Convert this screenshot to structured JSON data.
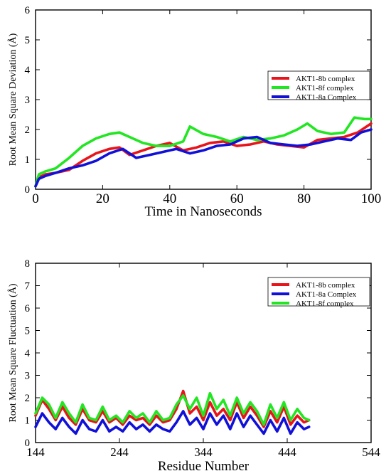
{
  "colors": {
    "red": "#e8141c",
    "green": "#22e622",
    "blue": "#1010d8"
  },
  "chart_data": [
    {
      "type": "line",
      "xlabel": "Time in Nanoseconds",
      "ylabel": "Root Mean Square Deviation (Å)",
      "xlim": [
        0,
        100
      ],
      "ylim": [
        0,
        6
      ],
      "xticks": [
        0,
        20,
        40,
        60,
        80,
        100
      ],
      "yticks": [
        0,
        1,
        2,
        3,
        4,
        5,
        6
      ],
      "legend_position": "upper-right",
      "legend_order": [
        "AKT1-8b complex",
        "AKT1-8f complex",
        "AKT1-8a Complex"
      ],
      "series": [
        {
          "name": "AKT1-8b complex",
          "color": "red",
          "x": [
            0,
            1,
            3,
            6,
            10,
            14,
            18,
            22,
            25,
            28,
            32,
            36,
            40,
            44,
            48,
            52,
            56,
            60,
            64,
            68,
            72,
            76,
            80,
            84,
            88,
            92,
            96,
            100
          ],
          "y": [
            0.1,
            0.4,
            0.5,
            0.55,
            0.65,
            0.95,
            1.2,
            1.35,
            1.4,
            1.15,
            1.3,
            1.45,
            1.55,
            1.3,
            1.4,
            1.55,
            1.6,
            1.45,
            1.5,
            1.6,
            1.5,
            1.45,
            1.4,
            1.65,
            1.7,
            1.75,
            1.9,
            2.2
          ]
        },
        {
          "name": "AKT1-8f complex",
          "color": "green",
          "x": [
            0,
            1,
            3,
            6,
            10,
            14,
            18,
            22,
            25,
            28,
            32,
            36,
            40,
            44,
            46,
            50,
            54,
            58,
            62,
            66,
            70,
            74,
            78,
            81,
            84,
            88,
            92,
            95,
            98,
            100
          ],
          "y": [
            0.1,
            0.5,
            0.6,
            0.7,
            1.05,
            1.45,
            1.7,
            1.85,
            1.9,
            1.75,
            1.55,
            1.45,
            1.45,
            1.6,
            2.1,
            1.85,
            1.75,
            1.6,
            1.75,
            1.65,
            1.7,
            1.8,
            2.0,
            2.2,
            1.95,
            1.85,
            1.9,
            2.4,
            2.35,
            2.35
          ]
        },
        {
          "name": "AKT1-8a Complex",
          "color": "blue",
          "x": [
            0,
            1,
            3,
            6,
            10,
            14,
            18,
            22,
            26,
            30,
            34,
            38,
            42,
            46,
            50,
            54,
            58,
            62,
            66,
            70,
            74,
            78,
            82,
            86,
            90,
            94,
            97,
            100
          ],
          "y": [
            0.1,
            0.35,
            0.45,
            0.55,
            0.7,
            0.8,
            0.95,
            1.2,
            1.35,
            1.05,
            1.15,
            1.25,
            1.35,
            1.2,
            1.3,
            1.45,
            1.5,
            1.7,
            1.75,
            1.55,
            1.5,
            1.45,
            1.5,
            1.6,
            1.7,
            1.65,
            1.9,
            2.0
          ]
        }
      ]
    },
    {
      "type": "line",
      "xlabel": "Residue Number",
      "ylabel": "Root Mean Square Fluctuation (Å)",
      "xlim": [
        144,
        544
      ],
      "ylim": [
        0,
        8
      ],
      "xticks": [
        144,
        244,
        344,
        444,
        544
      ],
      "yticks": [
        0,
        1,
        2,
        3,
        4,
        5,
        6,
        7,
        8
      ],
      "legend_position": "upper-right",
      "legend_order": [
        "AKT1-8b complex",
        "AKT1-8a Complex",
        "AKT1-8f complex"
      ],
      "series": [
        {
          "name": "AKT1-8b complex",
          "color": "red",
          "x": [
            144,
            152,
            160,
            168,
            176,
            184,
            192,
            200,
            208,
            216,
            224,
            232,
            240,
            248,
            256,
            264,
            272,
            280,
            288,
            296,
            304,
            312,
            320,
            328,
            336,
            344,
            352,
            360,
            368,
            376,
            384,
            392,
            400,
            408,
            416,
            424,
            432,
            440,
            448,
            456,
            464,
            470
          ],
          "y": [
            1.2,
            1.9,
            1.5,
            1.0,
            1.6,
            1.1,
            0.8,
            1.5,
            1.0,
            0.9,
            1.4,
            0.9,
            1.1,
            0.8,
            1.2,
            1.0,
            1.1,
            0.8,
            1.2,
            0.9,
            1.0,
            1.5,
            2.3,
            1.3,
            1.6,
            1.0,
            1.8,
            1.2,
            1.5,
            1.0,
            1.8,
            1.1,
            1.6,
            1.2,
            0.7,
            1.4,
            0.9,
            1.6,
            0.8,
            1.2,
            0.9,
            1.0
          ]
        },
        {
          "name": "AKT1-8a Complex",
          "color": "blue",
          "x": [
            144,
            152,
            160,
            168,
            176,
            184,
            192,
            200,
            208,
            216,
            224,
            232,
            240,
            248,
            256,
            264,
            272,
            280,
            288,
            296,
            304,
            312,
            320,
            328,
            336,
            344,
            352,
            360,
            368,
            376,
            384,
            392,
            400,
            408,
            416,
            424,
            432,
            440,
            448,
            456,
            464,
            470
          ],
          "y": [
            0.7,
            1.3,
            0.9,
            0.6,
            1.1,
            0.7,
            0.4,
            1.0,
            0.6,
            0.5,
            1.0,
            0.5,
            0.7,
            0.5,
            0.9,
            0.6,
            0.8,
            0.5,
            0.8,
            0.6,
            0.5,
            0.9,
            1.4,
            0.8,
            1.1,
            0.6,
            1.3,
            0.8,
            1.2,
            0.6,
            1.3,
            0.7,
            1.2,
            0.8,
            0.4,
            1.0,
            0.5,
            1.1,
            0.4,
            0.9,
            0.6,
            0.7
          ]
        },
        {
          "name": "AKT1-8f complex",
          "color": "green",
          "x": [
            144,
            152,
            160,
            168,
            176,
            184,
            192,
            200,
            208,
            216,
            224,
            232,
            240,
            248,
            256,
            264,
            272,
            280,
            288,
            296,
            304,
            312,
            320,
            328,
            336,
            344,
            352,
            360,
            368,
            376,
            384,
            392,
            400,
            408,
            416,
            424,
            432,
            440,
            448,
            456,
            464,
            470
          ],
          "y": [
            1.3,
            2.0,
            1.7,
            1.1,
            1.8,
            1.3,
            0.9,
            1.7,
            1.1,
            1.0,
            1.6,
            1.0,
            1.2,
            0.9,
            1.4,
            1.1,
            1.3,
            0.9,
            1.4,
            1.0,
            1.1,
            1.7,
            2.1,
            1.5,
            2.0,
            1.2,
            2.2,
            1.5,
            1.9,
            1.2,
            2.0,
            1.3,
            1.8,
            1.4,
            0.8,
            1.7,
            1.1,
            1.8,
            1.0,
            1.5,
            1.1,
            1.0
          ]
        }
      ]
    }
  ]
}
